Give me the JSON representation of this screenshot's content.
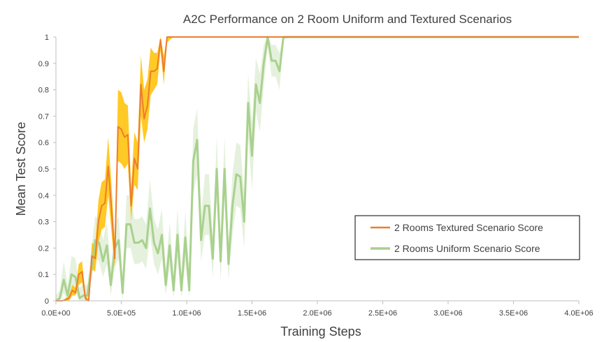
{
  "chart_data": {
    "type": "line",
    "title": "A2C Performance on 2 Room Uniform and Textured Scenarios",
    "xlabel": "Training Steps",
    "ylabel": "Mean Test Score",
    "xlim": [
      0,
      4000000
    ],
    "ylim": [
      0,
      1
    ],
    "x_ticks": [
      0,
      500000,
      1000000,
      1500000,
      2000000,
      2500000,
      3000000,
      3500000,
      4000000
    ],
    "x_tick_labels": [
      "0.0E+00",
      "5.0E+05",
      "1.0E+06",
      "1.5E+06",
      "2.0E+06",
      "2.5E+06",
      "3.0E+06",
      "3.5E+06",
      "4.0E+06"
    ],
    "y_ticks": [
      0,
      0.1,
      0.2,
      0.3,
      0.4,
      0.5,
      0.6,
      0.7,
      0.8,
      0.9,
      1
    ],
    "y_tick_labels": [
      "0",
      "0.1",
      "0.2",
      "0.3",
      "0.4",
      "0.5",
      "0.6",
      "0.7",
      "0.8",
      "0.9",
      "1"
    ],
    "grid": false,
    "legend_position": "right",
    "series": [
      {
        "name": "2 Rooms Textured Scenario Score",
        "color": "#ED7D31",
        "band_color": "#FFC000",
        "x": [
          0,
          50000,
          100000,
          125000,
          150000,
          175000,
          200000,
          225000,
          250000,
          275000,
          300000,
          325000,
          350000,
          375000,
          400000,
          425000,
          450000,
          475000,
          500000,
          525000,
          550000,
          575000,
          600000,
          625000,
          650000,
          675000,
          700000,
          725000,
          750000,
          775000,
          800000,
          825000,
          850000,
          875000,
          900000,
          925000,
          950000,
          975000,
          1000000,
          1050000,
          1100000,
          1200000,
          1300000,
          1400000,
          1500000,
          1600000,
          1700000,
          2000000,
          2500000,
          3000000,
          3500000,
          4000000
        ],
        "y": [
          0,
          0,
          0.01,
          0.04,
          0.03,
          0.1,
          0.11,
          0.01,
          0,
          0.17,
          0.16,
          0.3,
          0.36,
          0.37,
          0.51,
          0.35,
          0.16,
          0.66,
          0.65,
          0.62,
          0.63,
          0.36,
          0.54,
          0.5,
          0.82,
          0.69,
          0.74,
          0.87,
          0.87,
          0.88,
          0.99,
          0.87,
          1,
          1,
          1,
          1,
          1,
          1,
          1,
          1,
          1,
          1,
          1,
          1,
          1,
          1,
          1,
          1,
          1,
          1,
          1,
          1
        ],
        "lower": [
          0,
          0,
          0,
          0.02,
          0.02,
          0.06,
          0.07,
          0,
          0,
          0.12,
          0.11,
          0.22,
          0.27,
          0.28,
          0.4,
          0.26,
          0.12,
          0.53,
          0.52,
          0.5,
          0.52,
          0.3,
          0.44,
          0.42,
          0.7,
          0.6,
          0.65,
          0.78,
          0.8,
          0.82,
          0.95,
          0.82,
          0.98,
          0.99,
          1,
          1,
          1,
          1,
          1,
          1,
          1,
          1,
          1,
          1,
          1,
          1,
          1,
          1,
          1,
          1,
          1,
          1
        ],
        "upper": [
          0,
          0,
          0.02,
          0.06,
          0.05,
          0.14,
          0.15,
          0.03,
          0,
          0.22,
          0.21,
          0.38,
          0.45,
          0.46,
          0.62,
          0.44,
          0.22,
          0.8,
          0.79,
          0.75,
          0.74,
          0.43,
          0.64,
          0.6,
          0.93,
          0.8,
          0.84,
          0.96,
          0.94,
          0.94,
          1,
          0.93,
          1,
          1,
          1,
          1,
          1,
          1,
          1,
          1,
          1,
          1,
          1,
          1,
          1,
          1,
          1,
          1,
          1,
          1,
          1,
          1
        ]
      },
      {
        "name": "2 Rooms Uniform Scenario Score",
        "color": "#A9D18E",
        "band_color": "#E2F0D9",
        "x": [
          0,
          30000,
          60000,
          90000,
          120000,
          150000,
          180000,
          210000,
          240000,
          270000,
          300000,
          330000,
          360000,
          390000,
          420000,
          450000,
          480000,
          510000,
          540000,
          570000,
          600000,
          630000,
          660000,
          690000,
          720000,
          750000,
          780000,
          810000,
          840000,
          870000,
          900000,
          930000,
          960000,
          990000,
          1020000,
          1050000,
          1080000,
          1110000,
          1140000,
          1170000,
          1200000,
          1230000,
          1260000,
          1290000,
          1320000,
          1350000,
          1380000,
          1410000,
          1440000,
          1470000,
          1500000,
          1530000,
          1560000,
          1590000,
          1620000,
          1650000,
          1680000,
          1710000,
          1740000,
          1800000,
          2000000,
          2500000,
          3000000,
          3500000,
          4000000
        ],
        "y": [
          0,
          0.01,
          0.08,
          0.02,
          0.1,
          0.09,
          0.01,
          0.02,
          0.02,
          0.12,
          0.23,
          0.22,
          0.15,
          0.21,
          0.06,
          0.2,
          0.23,
          0.03,
          0.29,
          0.29,
          0.22,
          0.22,
          0.23,
          0.2,
          0.35,
          0.22,
          0.18,
          0.25,
          0.06,
          0.21,
          0.04,
          0.25,
          0.04,
          0.24,
          0.04,
          0.53,
          0.61,
          0.23,
          0.36,
          0.36,
          0.16,
          0.5,
          0.15,
          0.5,
          0.14,
          0.36,
          0.48,
          0.47,
          0.3,
          0.75,
          0.55,
          0.82,
          0.75,
          0.9,
          1,
          0.91,
          0.91,
          0.87,
          1,
          1,
          1,
          1,
          1,
          1,
          1
        ],
        "lower": [
          0,
          0,
          0.03,
          0,
          0.05,
          0.04,
          0,
          0,
          0,
          0.07,
          0.16,
          0.15,
          0.09,
          0.14,
          0.02,
          0.13,
          0.16,
          0,
          0.2,
          0.2,
          0.14,
          0.14,
          0.15,
          0.12,
          0.25,
          0.14,
          0.1,
          0.16,
          0.02,
          0.13,
          0.01,
          0.16,
          0.01,
          0.15,
          0.01,
          0.4,
          0.48,
          0.15,
          0.25,
          0.25,
          0.09,
          0.38,
          0.08,
          0.38,
          0.08,
          0.25,
          0.36,
          0.35,
          0.2,
          0.62,
          0.42,
          0.72,
          0.64,
          0.82,
          0.96,
          0.85,
          0.85,
          0.8,
          0.99,
          1,
          1,
          1,
          1,
          1,
          1
        ],
        "upper": [
          0.02,
          0.04,
          0.15,
          0.06,
          0.17,
          0.16,
          0.05,
          0.06,
          0.06,
          0.19,
          0.32,
          0.31,
          0.23,
          0.3,
          0.12,
          0.29,
          0.32,
          0.08,
          0.4,
          0.4,
          0.31,
          0.31,
          0.32,
          0.29,
          0.46,
          0.31,
          0.27,
          0.35,
          0.12,
          0.3,
          0.1,
          0.35,
          0.1,
          0.34,
          0.1,
          0.65,
          0.73,
          0.32,
          0.48,
          0.48,
          0.24,
          0.62,
          0.23,
          0.62,
          0.22,
          0.48,
          0.6,
          0.59,
          0.41,
          0.86,
          0.68,
          0.92,
          0.86,
          0.97,
          1,
          0.97,
          0.97,
          0.94,
          1,
          1,
          1,
          1,
          1,
          1,
          1
        ]
      }
    ]
  }
}
